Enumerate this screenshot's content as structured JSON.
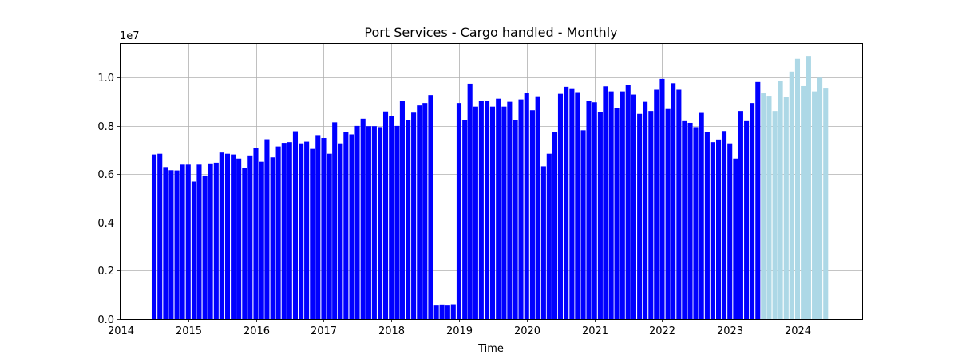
{
  "chart_data": {
    "type": "bar",
    "title": "Port Services - Cargo handled - Monthly",
    "xlabel": "Time",
    "ylabel": "",
    "y_offset_text": "1e7",
    "x_domain": [
      "2014-01-01",
      "2024-12-15"
    ],
    "ylim": [
      0,
      11400000
    ],
    "grid": true,
    "x_ticks": [
      {
        "date": "2014-01-01",
        "label": "2014"
      },
      {
        "date": "2015-01-01",
        "label": "2015"
      },
      {
        "date": "2016-01-01",
        "label": "2016"
      },
      {
        "date": "2017-01-01",
        "label": "2017"
      },
      {
        "date": "2018-01-01",
        "label": "2018"
      },
      {
        "date": "2019-01-01",
        "label": "2019"
      },
      {
        "date": "2020-01-01",
        "label": "2020"
      },
      {
        "date": "2021-01-01",
        "label": "2021"
      },
      {
        "date": "2022-01-01",
        "label": "2022"
      },
      {
        "date": "2023-01-01",
        "label": "2023"
      },
      {
        "date": "2024-01-01",
        "label": "2024"
      }
    ],
    "y_ticks": [
      {
        "value": 0,
        "label": "0.0"
      },
      {
        "value": 2000000,
        "label": "0.2"
      },
      {
        "value": 4000000,
        "label": "0.4"
      },
      {
        "value": 6000000,
        "label": "0.6"
      },
      {
        "value": 8000000,
        "label": "0.8"
      },
      {
        "value": 10000000,
        "label": "1.0"
      }
    ],
    "series": [
      {
        "color": "#0000ff",
        "x": [
          "2014-07-01",
          "2014-08-01",
          "2014-09-01",
          "2014-10-01",
          "2014-11-01",
          "2014-12-01",
          "2015-01-01",
          "2015-02-01",
          "2015-03-01",
          "2015-04-01",
          "2015-05-01",
          "2015-06-01",
          "2015-07-01",
          "2015-08-01",
          "2015-09-01",
          "2015-10-01",
          "2015-11-01",
          "2015-12-01",
          "2016-01-01",
          "2016-02-01",
          "2016-03-01",
          "2016-04-01",
          "2016-05-01",
          "2016-06-01",
          "2016-07-01",
          "2016-08-01",
          "2016-09-01",
          "2016-10-01",
          "2016-11-01",
          "2016-12-01",
          "2017-01-01",
          "2017-02-01",
          "2017-03-01",
          "2017-04-01",
          "2017-05-01",
          "2017-06-01",
          "2017-07-01",
          "2017-08-01",
          "2017-09-01",
          "2017-10-01",
          "2017-11-01",
          "2017-12-01",
          "2018-01-01",
          "2018-02-01",
          "2018-03-01",
          "2018-04-01",
          "2018-05-01",
          "2018-06-01",
          "2018-07-01",
          "2018-08-01",
          "2018-09-01",
          "2018-10-01",
          "2018-11-01",
          "2018-12-01",
          "2019-01-01",
          "2019-02-01",
          "2019-03-01",
          "2019-04-01",
          "2019-05-01",
          "2019-06-01",
          "2019-07-01",
          "2019-08-01",
          "2019-09-01",
          "2019-10-01",
          "2019-11-01",
          "2019-12-01",
          "2020-01-01",
          "2020-02-01",
          "2020-03-01",
          "2020-04-01",
          "2020-05-01",
          "2020-06-01",
          "2020-07-01",
          "2020-08-01",
          "2020-09-01",
          "2020-10-01",
          "2020-11-01",
          "2020-12-01",
          "2021-01-01",
          "2021-02-01",
          "2021-03-01",
          "2021-04-01",
          "2021-05-01",
          "2021-06-01",
          "2021-07-01",
          "2021-08-01",
          "2021-09-01",
          "2021-10-01",
          "2021-11-01",
          "2021-12-01",
          "2022-01-01",
          "2022-02-01",
          "2022-03-01",
          "2022-04-01",
          "2022-05-01",
          "2022-06-01",
          "2022-07-01",
          "2022-08-01",
          "2022-09-01",
          "2022-10-01",
          "2022-11-01",
          "2022-12-01",
          "2023-01-01",
          "2023-02-01",
          "2023-03-01",
          "2023-04-01",
          "2023-05-01",
          "2023-06-01"
        ],
        "values": [
          6820000,
          6850000,
          6300000,
          6170000,
          6160000,
          6400000,
          6400000,
          5700000,
          6400000,
          5950000,
          6450000,
          6480000,
          6900000,
          6850000,
          6820000,
          6650000,
          6270000,
          6780000,
          7100000,
          6520000,
          7450000,
          6700000,
          7150000,
          7300000,
          7330000,
          7780000,
          7280000,
          7350000,
          7050000,
          7620000,
          7500000,
          6850000,
          8150000,
          7280000,
          7750000,
          7650000,
          8000000,
          8300000,
          7990000,
          7990000,
          7950000,
          8600000,
          8400000,
          8000000,
          9050000,
          8250000,
          8550000,
          8850000,
          8950000,
          9280000,
          590000,
          600000,
          590000,
          610000,
          8950000,
          8230000,
          9750000,
          8800000,
          9030000,
          9030000,
          8800000,
          9130000,
          8800000,
          9000000,
          8250000,
          9100000,
          9380000,
          8650000,
          9230000,
          6330000,
          6850000,
          7750000,
          9330000,
          9620000,
          9560000,
          9400000,
          7820000,
          9030000,
          8980000,
          8570000,
          9640000,
          9430000,
          8750000,
          9430000,
          9700000,
          9300000,
          8500000,
          9000000,
          8620000,
          9500000,
          9950000,
          8700000,
          9770000,
          9500000,
          8200000,
          8130000,
          7950000,
          8540000,
          7750000,
          7330000,
          7440000,
          7790000,
          7280000,
          6650000,
          8620000,
          8200000,
          8950000,
          9820000
        ]
      },
      {
        "color": "#add8e6",
        "x": [
          "2023-07-01",
          "2023-08-01",
          "2023-09-01",
          "2023-10-01",
          "2023-11-01",
          "2023-12-01",
          "2024-01-01",
          "2024-02-01",
          "2024-03-01",
          "2024-04-01",
          "2024-05-01",
          "2024-06-01"
        ],
        "values": [
          9350000,
          9250000,
          8620000,
          9860000,
          9200000,
          10250000,
          10780000,
          9650000,
          10900000,
          9430000,
          10000000,
          9580000
        ]
      }
    ]
  }
}
